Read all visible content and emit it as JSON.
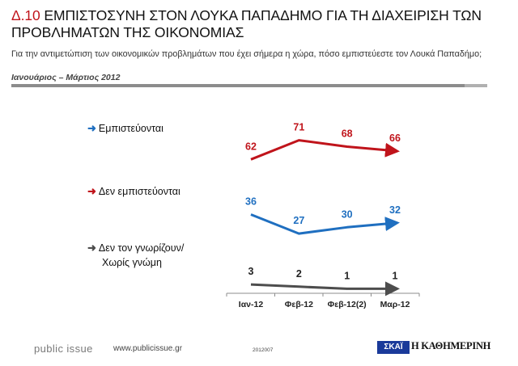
{
  "header": {
    "code": "Δ.10",
    "title": "ΕΜΠΙΣΤΟΣΥΝΗ ΣΤΟΝ ΛΟΥΚΑ ΠΑΠΑΔΗΜΟ ΓΙΑ ΤΗ ΔΙΑΧΕΙΡΙΣΗ ΤΩΝ ΠΡΟΒΛΗΜΑΤΩΝ ΤΗΣ ΟΙΚΟΝΟΜΙΑΣ",
    "subtitle": "Για την αντιμετώπιση των οικονομικών προβλημάτων που έχει σήμερα η χώρα, πόσο εμπιστεύεστε τον Λουκά Παπαδήμο;",
    "period": "Ιανουάριος – Μάρτιος 2012"
  },
  "legend": {
    "items": [
      {
        "lines": [
          "Εμπιστεύονται"
        ]
      },
      {
        "lines": [
          "Δεν εμπιστεύονται"
        ]
      },
      {
        "lines": [
          "Δεν τον γνωρίζουν/",
          "Χωρίς γνώμη"
        ]
      }
    ]
  },
  "chart_data": {
    "type": "line",
    "categories": [
      "Ιαν-12",
      "Φεβ-12",
      "Φεβ-12(2)",
      "Μαρ-12"
    ],
    "series": [
      {
        "name": "Εμπιστεύονται",
        "values": [
          36,
          27,
          30,
          32
        ],
        "color": "#1f6fc0"
      },
      {
        "name": "Δεν εμπιστεύονται",
        "values": [
          62,
          71,
          68,
          66
        ],
        "color": "#c0141b"
      },
      {
        "name": "Δεν τον γνωρίζουν/ Χωρίς γνώμη",
        "values": [
          3,
          2,
          1,
          1
        ],
        "color": "#4d4d4d"
      }
    ],
    "title": "ΕΜΠΙΣΤΟΣΥΝΗ ΣΤΟΝ ΛΟΥΚΑ ΠΑΠΑΔΗΜΟ ΓΙΑ ΤΗ ΔΙΑΧΕΙΡΙΣΗ ΤΩΝ ΠΡΟΒΛΗΜΑΤΩΝ ΤΗΣ ΟΙΚΟΝΟΜΙΑΣ",
    "xlabel": "",
    "ylabel": "",
    "ylim": [
      0,
      80
    ],
    "grid": false,
    "legend_position": "left"
  },
  "footer": {
    "brand": "public issue",
    "url": "www.publicissue.gr",
    "code": "2012007",
    "logo_skai": "ΣΚΑΪ",
    "logo_kathimerini": "Η ΚΑΘΗΜΕΡΙΝΗ"
  }
}
